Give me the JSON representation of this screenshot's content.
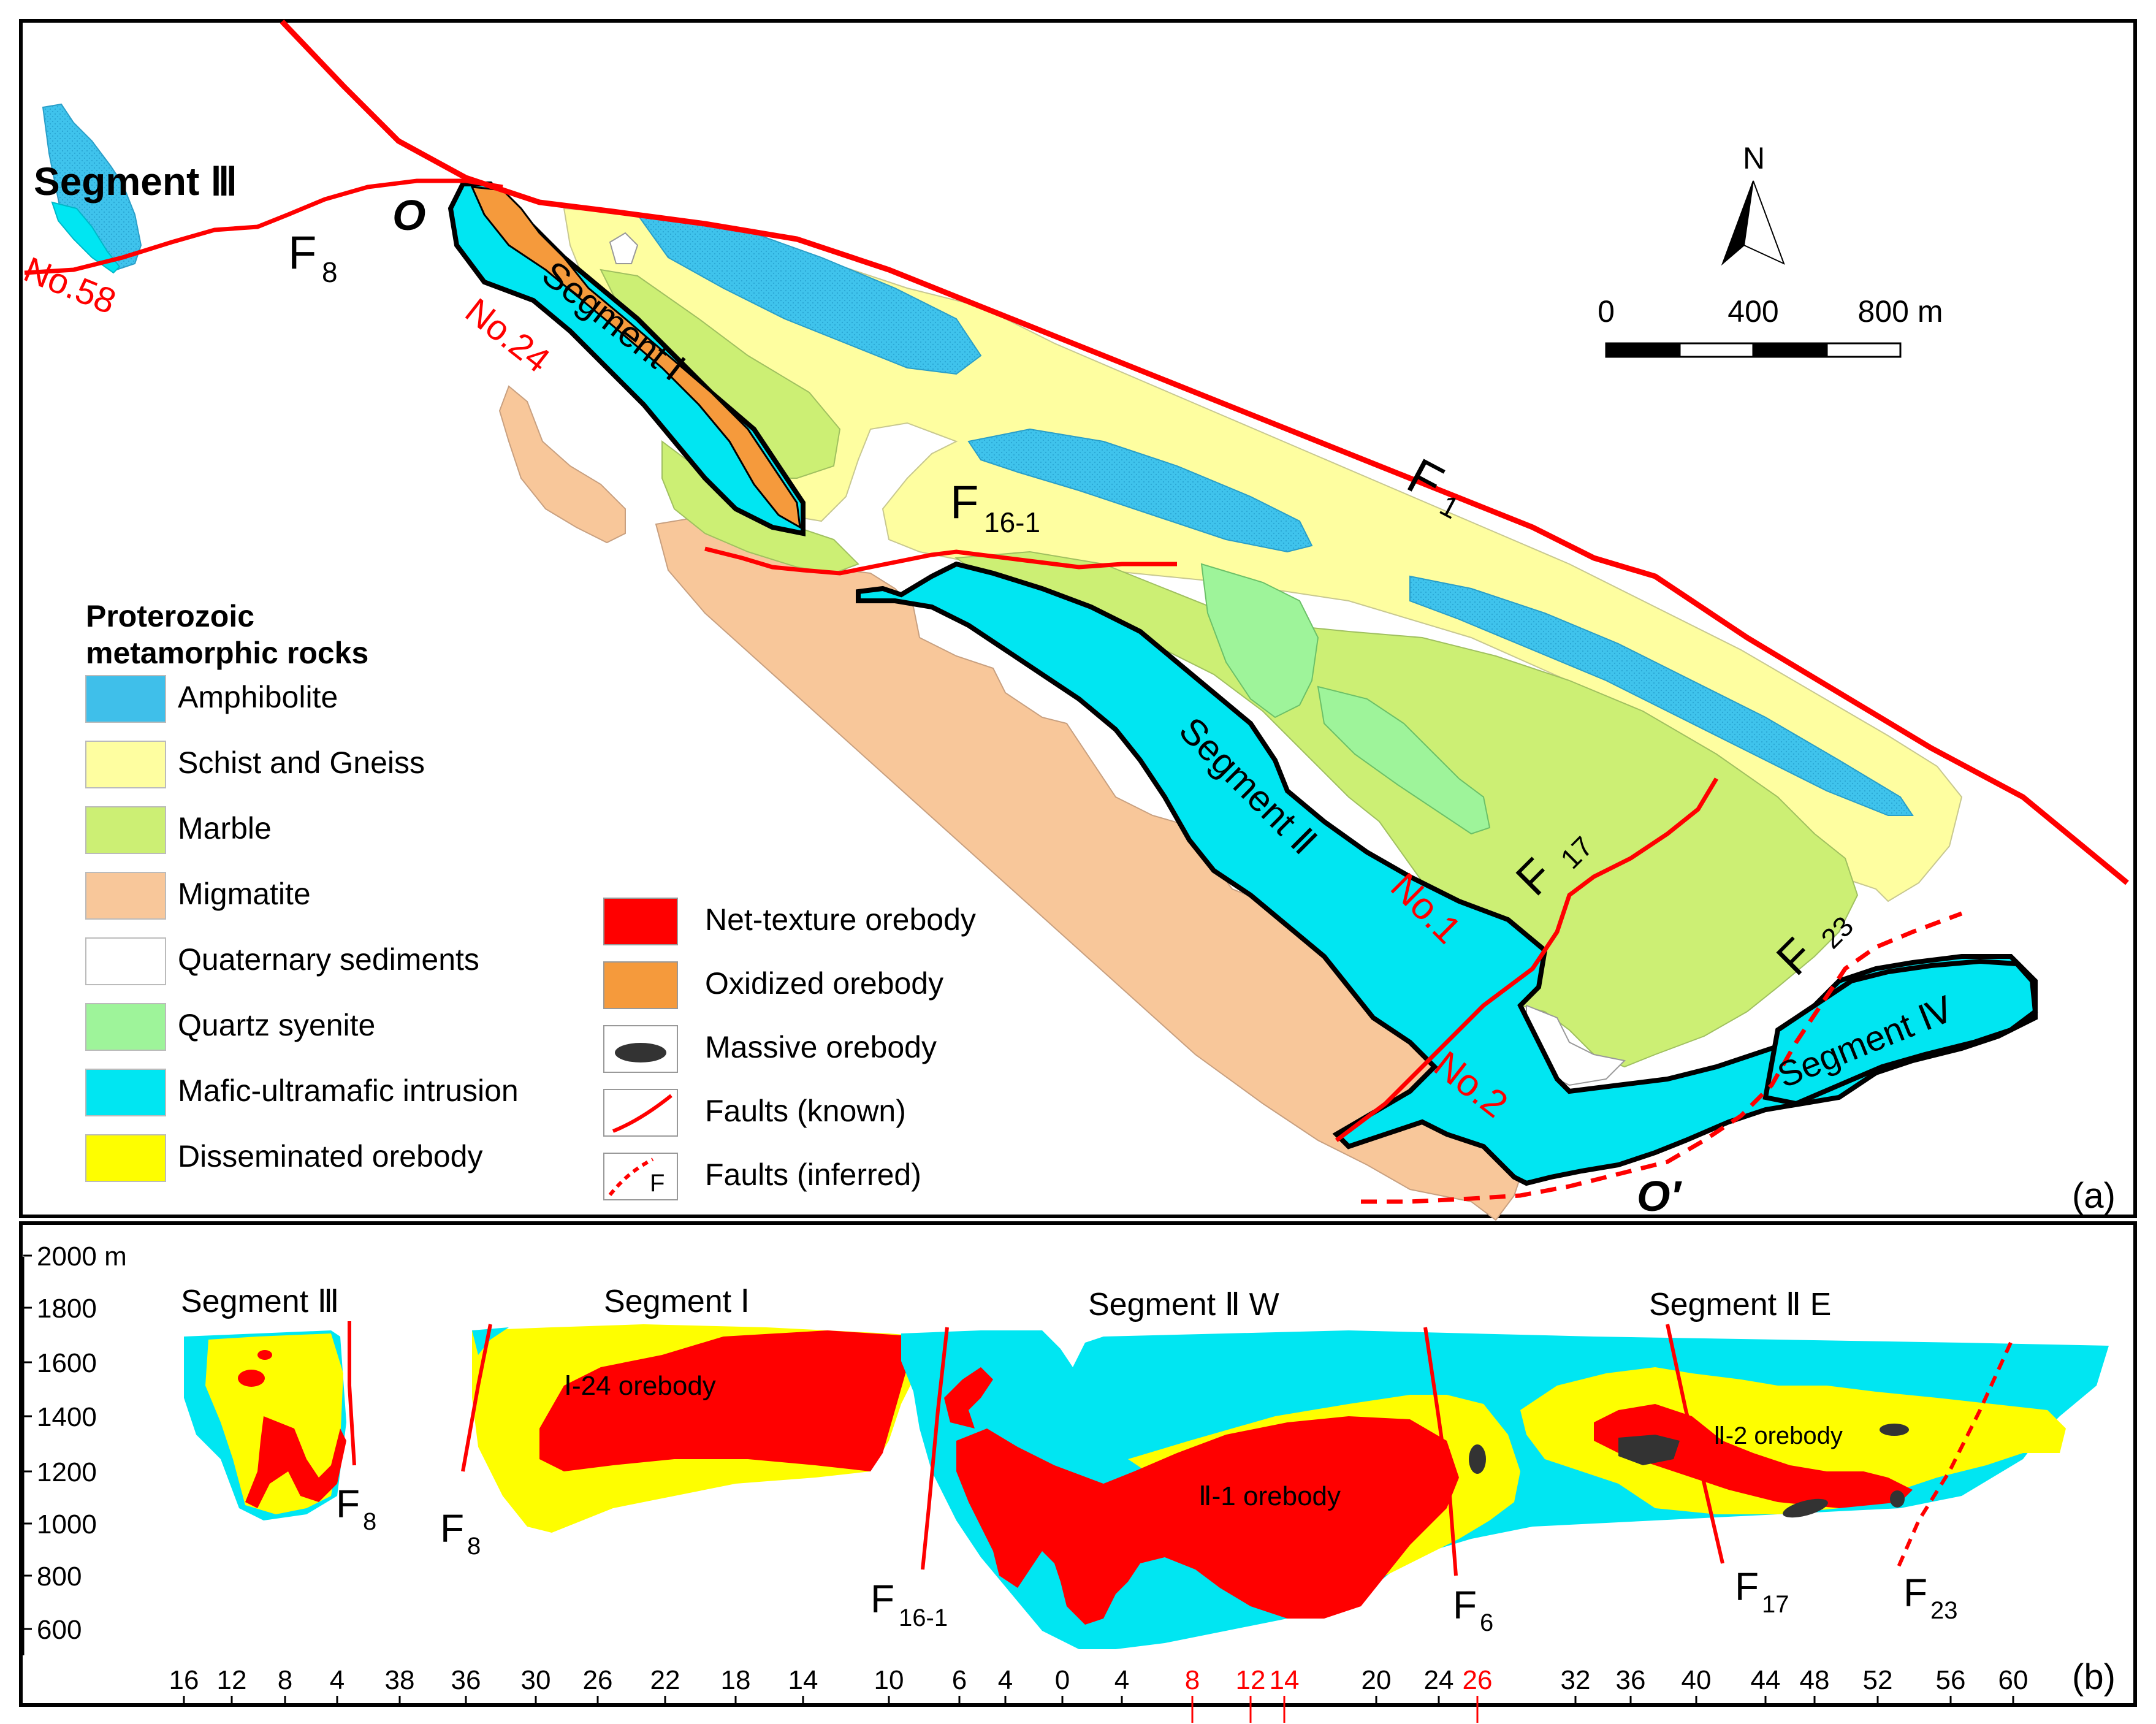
{
  "panel_a": {
    "panel_label": "(a)",
    "north_label": "N",
    "scale": {
      "labels": [
        "0",
        "400",
        "800 m"
      ]
    },
    "segments": {
      "seg3": "Segment Ⅲ",
      "seg1": "Segment Ⅰ",
      "seg2": "Segment Ⅱ",
      "seg4": "Segment Ⅳ"
    },
    "section_ends": {
      "start": "O",
      "end": "O′"
    },
    "orebody_labels": {
      "no58": "No.58",
      "no24": "No.24",
      "no1": "No.1",
      "no2": "No.2"
    },
    "faults": {
      "F8": {
        "base": "F",
        "sub": "8"
      },
      "F1": {
        "base": "F",
        "sub": "1"
      },
      "F16_1": {
        "base": "F",
        "sub": "16-1"
      },
      "F17": {
        "base": "F",
        "sub": "17"
      },
      "F23": {
        "base": "F",
        "sub": "23"
      }
    },
    "legend": {
      "title_line1": "Proterozoic",
      "title_line2": "metamorphic rocks",
      "items_left": [
        {
          "label": "Amphibolite",
          "color": "#3fbfea"
        },
        {
          "label": "Schist and Gneiss",
          "color": "#fefea0"
        },
        {
          "label": "Marble",
          "color": "#ccef74"
        },
        {
          "label": "Migmatite",
          "color": "#f8c79a"
        },
        {
          "label": "Quaternary sediments",
          "color": "#ffffff"
        },
        {
          "label": "Quartz syenite",
          "color": "#9ef49a"
        },
        {
          "label": "Mafic-ultramafic intrusion",
          "color": "#00e6f2"
        },
        {
          "label": "Disseminated orebody",
          "color": "#fefe00"
        }
      ],
      "items_right": [
        {
          "label": "Net-texture orebody",
          "color": "#ff0000",
          "icon": "red-fill"
        },
        {
          "label": "Oxidized orebody",
          "color": "#f59a3c",
          "icon": "orange-fill"
        },
        {
          "label": "Massive orebody",
          "color": "#333333",
          "icon": "black-blob"
        },
        {
          "label": "Faults (known)",
          "color": "#ff0000",
          "icon": "solid-red-line"
        },
        {
          "label": "Faults (inferred)",
          "color": "#ff0000",
          "icon": "dashed-red-line",
          "icon_text": "F"
        }
      ]
    }
  },
  "panel_b": {
    "panel_label": "(b)",
    "segment_titles": {
      "seg3": "Segment Ⅲ",
      "seg1": "Segment Ⅰ",
      "seg2w": "Segment Ⅱ W",
      "seg2e": "Segment Ⅱ E"
    },
    "orebodies": {
      "ob24": "Ⅰ-24 orebody",
      "ob1": "Ⅱ-1 orebody",
      "ob2": "Ⅱ-2 orebody"
    },
    "faults": {
      "F8a": {
        "base": "F",
        "sub": "8"
      },
      "F8b": {
        "base": "F",
        "sub": "8"
      },
      "F16_1": {
        "base": "F",
        "sub": "16-1"
      },
      "F6": {
        "base": "F",
        "sub": "6"
      },
      "F17": {
        "base": "F",
        "sub": "17"
      },
      "F23": {
        "base": "F",
        "sub": "23"
      }
    },
    "elevation_labels": [
      "2000 m",
      "1800",
      "1600",
      "1400",
      "1200",
      "1000",
      "800",
      "600"
    ],
    "line_numbers": [
      {
        "label": "16",
        "color": "#000000"
      },
      {
        "label": "12",
        "color": "#000000"
      },
      {
        "label": "8",
        "color": "#000000"
      },
      {
        "label": "4",
        "color": "#000000"
      },
      {
        "label": "38",
        "color": "#000000"
      },
      {
        "label": "36",
        "color": "#000000"
      },
      {
        "label": "30",
        "color": "#000000"
      },
      {
        "label": "26",
        "color": "#000000"
      },
      {
        "label": "22",
        "color": "#000000"
      },
      {
        "label": "18",
        "color": "#000000"
      },
      {
        "label": "14",
        "color": "#000000"
      },
      {
        "label": "10",
        "color": "#000000"
      },
      {
        "label": "6",
        "color": "#000000"
      },
      {
        "label": "4",
        "color": "#000000"
      },
      {
        "label": "0",
        "color": "#000000"
      },
      {
        "label": "4",
        "color": "#000000"
      },
      {
        "label": "8",
        "color": "#ff0000"
      },
      {
        "label": "12",
        "color": "#ff0000"
      },
      {
        "label": "14",
        "color": "#ff0000"
      },
      {
        "label": "20",
        "color": "#000000"
      },
      {
        "label": "24",
        "color": "#000000"
      },
      {
        "label": "26",
        "color": "#ff0000"
      },
      {
        "label": "32",
        "color": "#000000"
      },
      {
        "label": "36",
        "color": "#000000"
      },
      {
        "label": "40",
        "color": "#000000"
      },
      {
        "label": "44",
        "color": "#000000"
      },
      {
        "label": "48",
        "color": "#000000"
      },
      {
        "label": "52",
        "color": "#000000"
      },
      {
        "label": "56",
        "color": "#000000"
      },
      {
        "label": "60",
        "color": "#000000"
      }
    ]
  }
}
